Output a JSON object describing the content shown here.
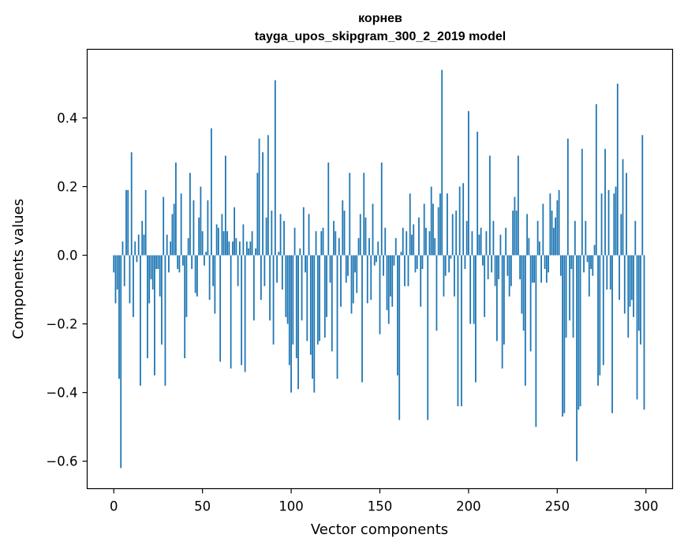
{
  "chart_data": {
    "type": "bar",
    "title": "корнев",
    "subtitle": "tayga_upos_skipgram_300_2_2019 model",
    "xlabel": "Vector components",
    "ylabel": "Components values",
    "xlim": [
      -15,
      315
    ],
    "ylim": [
      -0.68,
      0.6
    ],
    "xticks": [
      0,
      50,
      100,
      150,
      200,
      250,
      300
    ],
    "yticks": [
      -0.6,
      -0.4,
      -0.2,
      0.0,
      0.2,
      0.4
    ],
    "ytick_labels": [
      "−0.6",
      "−0.4",
      "−0.2",
      "0.0",
      "0.2",
      "0.4"
    ],
    "bar_color": "#1f77b4",
    "grid": false,
    "x": [
      0,
      1,
      2,
      3,
      4,
      5,
      6,
      7,
      8,
      9,
      10,
      11,
      12,
      13,
      14,
      15,
      16,
      17,
      18,
      19,
      20,
      21,
      22,
      23,
      24,
      25,
      26,
      27,
      28,
      29,
      30,
      31,
      32,
      33,
      34,
      35,
      36,
      37,
      38,
      39,
      40,
      41,
      42,
      43,
      44,
      45,
      46,
      47,
      48,
      49,
      50,
      51,
      52,
      53,
      54,
      55,
      56,
      57,
      58,
      59,
      60,
      61,
      62,
      63,
      64,
      65,
      66,
      67,
      68,
      69,
      70,
      71,
      72,
      73,
      74,
      75,
      76,
      77,
      78,
      79,
      80,
      81,
      82,
      83,
      84,
      85,
      86,
      87,
      88,
      89,
      90,
      91,
      92,
      93,
      94,
      95,
      96,
      97,
      98,
      99,
      100,
      101,
      102,
      103,
      104,
      105,
      106,
      107,
      108,
      109,
      110,
      111,
      112,
      113,
      114,
      115,
      116,
      117,
      118,
      119,
      120,
      121,
      122,
      123,
      124,
      125,
      126,
      127,
      128,
      129,
      130,
      131,
      132,
      133,
      134,
      135,
      136,
      137,
      138,
      139,
      140,
      141,
      142,
      143,
      144,
      145,
      146,
      147,
      148,
      149,
      150,
      151,
      152,
      153,
      154,
      155,
      156,
      157,
      158,
      159,
      160,
      161,
      162,
      163,
      164,
      165,
      166,
      167,
      168,
      169,
      170,
      171,
      172,
      173,
      174,
      175,
      176,
      177,
      178,
      179,
      180,
      181,
      182,
      183,
      184,
      185,
      186,
      187,
      188,
      189,
      190,
      191,
      192,
      193,
      194,
      195,
      196,
      197,
      198,
      199,
      200,
      201,
      202,
      203,
      204,
      205,
      206,
      207,
      208,
      209,
      210,
      211,
      212,
      213,
      214,
      215,
      216,
      217,
      218,
      219,
      220,
      221,
      222,
      223,
      224,
      225,
      226,
      227,
      228,
      229,
      230,
      231,
      232,
      233,
      234,
      235,
      236,
      237,
      238,
      239,
      240,
      241,
      242,
      243,
      244,
      245,
      246,
      247,
      248,
      249,
      250,
      251,
      252,
      253,
      254,
      255,
      256,
      257,
      258,
      259,
      260,
      261,
      262,
      263,
      264,
      265,
      266,
      267,
      268,
      269,
      270,
      271,
      272,
      273,
      274,
      275,
      276,
      277,
      278,
      279,
      280,
      281,
      282,
      283,
      284,
      285,
      286,
      287,
      288,
      289,
      290,
      291,
      292,
      293,
      294,
      295,
      296,
      297,
      298,
      299
    ],
    "values": [
      -0.05,
      -0.14,
      -0.1,
      -0.36,
      -0.62,
      0.04,
      -0.09,
      0.19,
      0.19,
      -0.14,
      0.3,
      -0.18,
      0.04,
      -0.02,
      0.06,
      -0.38,
      0.1,
      0.06,
      0.19,
      -0.3,
      -0.14,
      -0.07,
      -0.1,
      -0.35,
      -0.04,
      -0.04,
      -0.12,
      -0.26,
      0.17,
      -0.38,
      0.06,
      -0.05,
      0.04,
      0.12,
      0.15,
      0.27,
      -0.04,
      -0.05,
      0.18,
      -0.03,
      -0.3,
      -0.18,
      0.05,
      0.24,
      -0.04,
      0.16,
      -0.11,
      -0.12,
      0.11,
      0.2,
      0.07,
      -0.03,
      0.01,
      0.16,
      -0.13,
      0.37,
      -0.09,
      -0.17,
      0.09,
      0.08,
      -0.31,
      0.12,
      0.07,
      0.29,
      0.07,
      0.04,
      -0.33,
      0.04,
      0.14,
      0.05,
      -0.09,
      0.04,
      -0.32,
      0.09,
      -0.34,
      0.04,
      0.02,
      0.04,
      0.07,
      -0.19,
      0.02,
      0.24,
      0.34,
      -0.13,
      0.3,
      -0.09,
      0.11,
      0.35,
      -0.19,
      0.13,
      -0.26,
      0.51,
      -0.08,
      0.01,
      0.12,
      -0.1,
      0.1,
      -0.18,
      -0.2,
      -0.32,
      -0.4,
      -0.26,
      0.08,
      -0.3,
      -0.39,
      0.02,
      -0.19,
      0.14,
      -0.05,
      -0.25,
      0.12,
      -0.29,
      -0.36,
      -0.4,
      0.07,
      -0.26,
      -0.25,
      0.07,
      0.08,
      -0.24,
      -0.18,
      0.27,
      -0.08,
      -0.28,
      0.1,
      0.07,
      -0.36,
      0.05,
      -0.15,
      0.16,
      0.13,
      -0.08,
      -0.06,
      0.24,
      -0.17,
      -0.14,
      -0.05,
      -0.11,
      0.05,
      0.12,
      -0.37,
      0.24,
      0.11,
      -0.14,
      0.05,
      -0.13,
      0.15,
      -0.03,
      -0.02,
      0.04,
      -0.23,
      0.27,
      -0.06,
      0.08,
      -0.16,
      -0.2,
      -0.12,
      -0.15,
      -0.03,
      0.05,
      -0.35,
      -0.48,
      0.01,
      0.08,
      -0.09,
      0.07,
      -0.09,
      0.18,
      0.06,
      0.09,
      -0.05,
      -0.04,
      0.11,
      -0.15,
      -0.04,
      0.15,
      0.08,
      -0.48,
      0.07,
      0.2,
      0.15,
      0.05,
      -0.22,
      0.14,
      0.18,
      0.54,
      -0.12,
      -0.06,
      0.18,
      -0.05,
      -0.01,
      0.12,
      -0.12,
      0.13,
      -0.44,
      0.2,
      -0.44,
      0.21,
      -0.04,
      0.1,
      0.42,
      -0.2,
      0.07,
      -0.2,
      -0.37,
      0.36,
      0.06,
      0.08,
      -0.03,
      -0.18,
      0.07,
      -0.07,
      0.29,
      -0.05,
      0.1,
      -0.09,
      -0.25,
      -0.07,
      0.06,
      -0.33,
      -0.26,
      0.08,
      -0.06,
      -0.12,
      -0.09,
      0.13,
      0.17,
      0.13,
      0.29,
      -0.07,
      -0.17,
      -0.22,
      -0.38,
      0.12,
      0.05,
      -0.28,
      -0.08,
      -0.08,
      -0.5,
      0.1,
      0.04,
      -0.08,
      0.15,
      -0.04,
      -0.08,
      -0.05,
      0.18,
      0.13,
      0.08,
      0.11,
      0.16,
      0.19,
      -0.06,
      -0.47,
      -0.46,
      -0.24,
      0.34,
      -0.19,
      -0.04,
      -0.24,
      0.1,
      -0.6,
      -0.45,
      -0.44,
      0.31,
      -0.05,
      0.1,
      -0.02,
      -0.12,
      -0.04,
      -0.06,
      0.03,
      0.44,
      -0.38,
      -0.35,
      0.18,
      -0.32,
      0.31,
      -0.1,
      0.19,
      -0.1,
      -0.46,
      0.18,
      0.2,
      0.5,
      -0.13,
      0.12,
      0.28,
      -0.17,
      0.24,
      -0.24,
      -0.15,
      -0.13,
      -0.18,
      0.1,
      -0.42,
      -0.22,
      -0.26,
      0.35,
      -0.45
    ]
  }
}
